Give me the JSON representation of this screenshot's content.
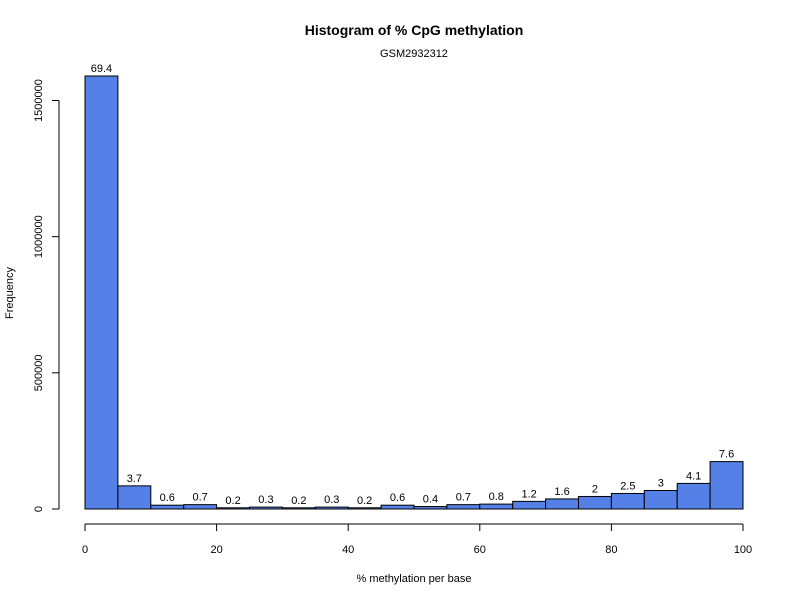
{
  "chart_data": {
    "type": "bar",
    "title": "Histogram of % CpG methylation",
    "subtitle": "GSM2932312",
    "xlabel": "% methylation per base",
    "ylabel": "Frequency",
    "bar_color": "#5580e8",
    "bin_edges": [
      0,
      5,
      10,
      15,
      20,
      25,
      30,
      35,
      40,
      45,
      50,
      55,
      60,
      65,
      70,
      75,
      80,
      85,
      90,
      95,
      100
    ],
    "values": [
      1590000,
      85000,
      14000,
      16000,
      4500,
      7000,
      4500,
      7000,
      4500,
      14000,
      9000,
      16000,
      18000,
      28000,
      37000,
      46000,
      57000,
      68000,
      94000,
      174000
    ],
    "percent_labels": [
      "69.4",
      "3.7",
      "0.6",
      "0.7",
      "0.2",
      "0.3",
      "0.2",
      "0.3",
      "0.2",
      "0.6",
      "0.4",
      "0.7",
      "0.8",
      "1.2",
      "1.6",
      "2",
      "2.5",
      "3",
      "4.1",
      "7.6"
    ],
    "xlim": [
      0,
      100
    ],
    "ylim": [
      0,
      1590000
    ],
    "x_ticks": [
      0,
      20,
      40,
      60,
      80,
      100
    ],
    "y_ticks": [
      0,
      500000,
      1000000,
      1500000
    ],
    "grid": false,
    "legend": "none"
  }
}
